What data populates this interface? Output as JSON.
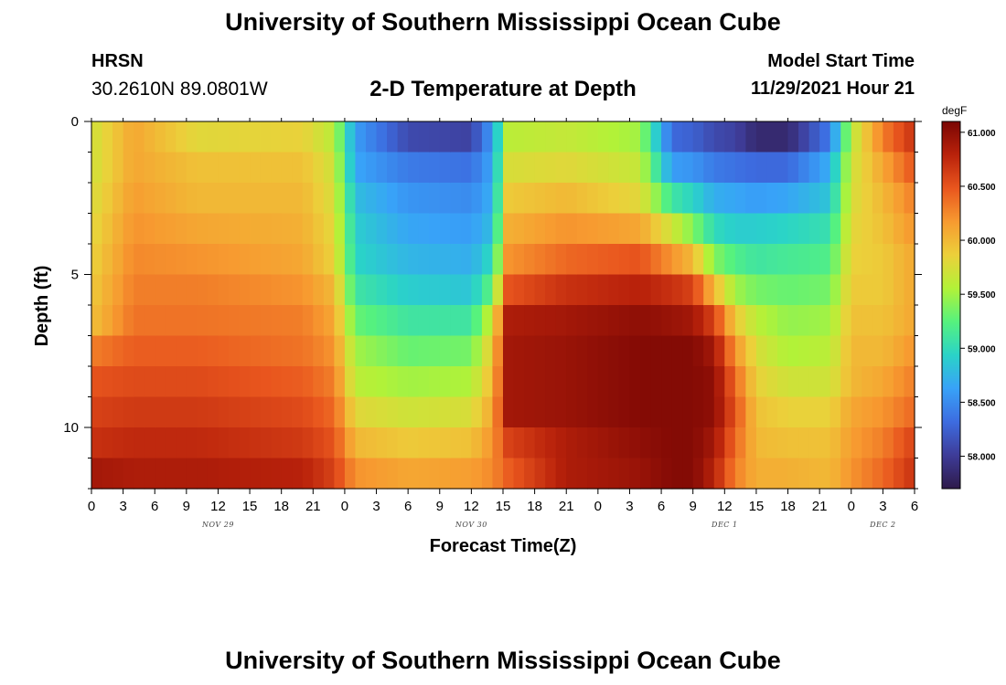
{
  "header": {
    "title": "University of Southern Mississippi Ocean Cube",
    "station": "HRSN",
    "coordinates": "30.2610N  89.0801W",
    "subtitle": "2-D Temperature at Depth",
    "start_label": "Model Start Time",
    "start_value": "11/29/2021 Hour 21"
  },
  "footer": {
    "title": "University of Southern Mississippi Ocean Cube"
  },
  "chart_data": {
    "type": "heatmap",
    "title": "2-D Temperature at Depth",
    "xlabel": "Forecast Time(Z)",
    "ylabel": "Depth (ft)",
    "x_unit": "hours since Nov 29 00Z",
    "xlim": [
      0,
      78
    ],
    "ylim": [
      0,
      12
    ],
    "x_ticks": [
      0,
      3,
      6,
      9,
      12,
      15,
      18,
      21,
      24,
      27,
      30,
      33,
      36,
      39,
      42,
      45,
      48,
      51,
      54,
      57,
      60,
      63,
      66,
      69,
      72,
      75,
      78
    ],
    "x_tick_labels": [
      "0",
      "3",
      "6",
      "9",
      "12",
      "15",
      "18",
      "21",
      "0",
      "3",
      "6",
      "9",
      "12",
      "15",
      "18",
      "21",
      "0",
      "3",
      "6",
      "9",
      "12",
      "15",
      "18",
      "21",
      "0",
      "3",
      "6"
    ],
    "y_ticks": [
      0,
      5,
      10
    ],
    "y_tick_labels": [
      "0",
      "5",
      "10"
    ],
    "day_labels": [
      {
        "text": "NOV 29",
        "x": 12
      },
      {
        "text": "NOV 30",
        "x": 36
      },
      {
        "text": "DEC 1",
        "x": 60
      },
      {
        "text": "DEC 2",
        "x": 75
      }
    ],
    "colorbar": {
      "unit": "degF",
      "min": 57.7,
      "max": 61.1,
      "ticks": [
        61.0,
        60.5,
        60.0,
        59.5,
        59.0,
        58.5,
        58.0
      ],
      "tick_labels": [
        "61.000",
        "60.500",
        "60.000",
        "59.500",
        "59.000",
        "58.500",
        "58.000"
      ],
      "palette": [
        "#2e1a4a",
        "#3e3c98",
        "#3d6ce0",
        "#38a2f8",
        "#2ad3c8",
        "#56f27e",
        "#b2f238",
        "#ecd03a",
        "#f79a30",
        "#e9561e",
        "#b9220b",
        "#7a0604"
      ]
    },
    "depth_levels": [
      0.5,
      1.5,
      2.5,
      3.5,
      4.5,
      5.5,
      6.5,
      7.5,
      8.5,
      9.5,
      10.5,
      11.5
    ],
    "keyframes": [
      {
        "t": 0,
        "temps": [
          59.7,
          59.7,
          59.75,
          59.8,
          59.85,
          59.9,
          59.95,
          60.3,
          60.5,
          60.6,
          60.7,
          60.9
        ]
      },
      {
        "t": 4,
        "temps": [
          60.1,
          60.1,
          60.15,
          60.2,
          60.25,
          60.3,
          60.35,
          60.45,
          60.55,
          60.65,
          60.75,
          60.85
        ]
      },
      {
        "t": 10,
        "temps": [
          59.8,
          59.95,
          60.0,
          60.1,
          60.2,
          60.3,
          60.35,
          60.45,
          60.55,
          60.65,
          60.75,
          60.85
        ]
      },
      {
        "t": 20,
        "temps": [
          59.85,
          59.95,
          60.0,
          60.05,
          60.1,
          60.2,
          60.3,
          60.35,
          60.45,
          60.55,
          60.65,
          60.8
        ]
      },
      {
        "t": 23,
        "temps": [
          59.6,
          59.7,
          59.75,
          59.8,
          59.85,
          60.0,
          60.1,
          60.2,
          60.3,
          60.4,
          60.5,
          60.6
        ]
      },
      {
        "t": 25,
        "temps": [
          58.6,
          58.65,
          58.8,
          58.9,
          58.95,
          59.1,
          59.3,
          59.5,
          59.6,
          59.8,
          60.0,
          60.2
        ]
      },
      {
        "t": 30,
        "temps": [
          58.1,
          58.4,
          58.55,
          58.65,
          58.75,
          58.9,
          59.1,
          59.3,
          59.5,
          59.7,
          59.9,
          60.1
        ]
      },
      {
        "t": 36,
        "temps": [
          58.05,
          58.35,
          58.5,
          58.6,
          58.7,
          58.85,
          59.1,
          59.35,
          59.55,
          59.75,
          59.95,
          60.15
        ]
      },
      {
        "t": 38,
        "temps": [
          58.6,
          58.65,
          58.7,
          58.8,
          59.0,
          59.3,
          59.7,
          59.9,
          60.0,
          60.1,
          60.2,
          60.25
        ]
      },
      {
        "t": 39.5,
        "temps": [
          59.6,
          59.75,
          59.9,
          60.05,
          60.2,
          60.5,
          60.85,
          60.9,
          60.9,
          60.9,
          60.6,
          60.45
        ]
      },
      {
        "t": 45,
        "temps": [
          59.65,
          59.8,
          60.0,
          60.2,
          60.4,
          60.7,
          60.9,
          60.95,
          60.95,
          60.95,
          60.85,
          60.85
        ]
      },
      {
        "t": 52,
        "temps": [
          59.5,
          59.65,
          59.8,
          60.1,
          60.5,
          60.8,
          61.0,
          61.05,
          61.05,
          61.05,
          61.0,
          60.95
        ]
      },
      {
        "t": 55,
        "temps": [
          58.3,
          58.6,
          59.1,
          59.7,
          60.2,
          60.7,
          60.95,
          61.05,
          61.05,
          61.05,
          61.05,
          61.05
        ]
      },
      {
        "t": 57,
        "temps": [
          58.25,
          58.55,
          58.95,
          59.4,
          60.0,
          60.6,
          60.9,
          61.05,
          61.05,
          61.05,
          61.05,
          61.05
        ]
      },
      {
        "t": 59,
        "temps": [
          58.1,
          58.4,
          58.7,
          59.0,
          59.4,
          60.0,
          60.6,
          60.9,
          61.0,
          61.0,
          60.9,
          60.8
        ]
      },
      {
        "t": 61,
        "temps": [
          58.05,
          58.35,
          58.65,
          58.9,
          59.2,
          59.5,
          59.9,
          60.2,
          60.4,
          60.5,
          60.4,
          60.3
        ]
      },
      {
        "t": 63,
        "temps": [
          57.85,
          58.3,
          58.6,
          58.9,
          59.1,
          59.35,
          59.6,
          59.75,
          59.85,
          59.95,
          60.0,
          60.05
        ]
      },
      {
        "t": 66,
        "temps": [
          57.85,
          58.3,
          58.65,
          58.95,
          59.15,
          59.3,
          59.45,
          59.55,
          59.7,
          59.85,
          59.95,
          60.05
        ]
      },
      {
        "t": 70,
        "temps": [
          58.4,
          58.7,
          58.85,
          59.05,
          59.2,
          59.35,
          59.5,
          59.6,
          59.7,
          59.85,
          59.95,
          60.0
        ]
      },
      {
        "t": 72,
        "temps": [
          59.6,
          59.7,
          59.75,
          59.8,
          59.85,
          59.9,
          59.95,
          60.0,
          60.0,
          60.1,
          60.15,
          60.2
        ]
      },
      {
        "t": 75,
        "temps": [
          60.3,
          60.1,
          60.0,
          59.95,
          59.9,
          59.9,
          59.95,
          60.0,
          60.1,
          60.2,
          60.3,
          60.4
        ]
      },
      {
        "t": 78,
        "temps": [
          60.7,
          60.5,
          60.3,
          60.2,
          60.1,
          60.1,
          60.1,
          60.2,
          60.3,
          60.4,
          60.6,
          60.7
        ]
      }
    ]
  }
}
